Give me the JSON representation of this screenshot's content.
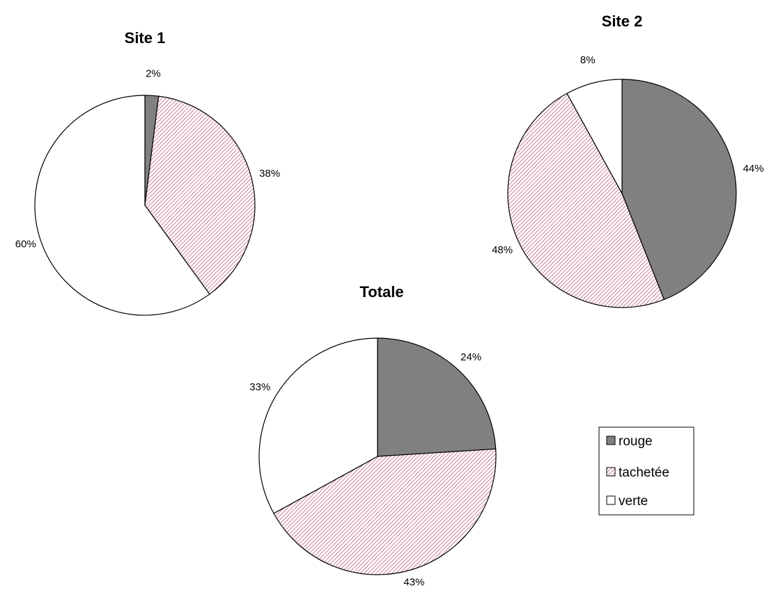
{
  "chart_data": [
    {
      "type": "pie",
      "title": "Site 1",
      "categories": [
        "rouge",
        "tachetée",
        "verte"
      ],
      "values": [
        2,
        38,
        60
      ],
      "labels": [
        "2%",
        "38%",
        "60%"
      ]
    },
    {
      "type": "pie",
      "title": "Site 2",
      "categories": [
        "rouge",
        "tachetée",
        "verte"
      ],
      "values": [
        44,
        48,
        8
      ],
      "labels": [
        "44%",
        "48%",
        "8%"
      ]
    },
    {
      "type": "pie",
      "title": "Totale",
      "categories": [
        "rouge",
        "tachetée",
        "verte"
      ],
      "values": [
        24,
        43,
        33
      ],
      "labels": [
        "24%",
        "43%",
        "33%"
      ]
    }
  ],
  "legend": {
    "entries": [
      {
        "label": "rouge",
        "fill": "solid",
        "color": "#808080"
      },
      {
        "label": "tachetée",
        "fill": "hatched",
        "color": "#e6b8c8"
      },
      {
        "label": "verte",
        "fill": "solid",
        "color": "#ffffff"
      }
    ]
  },
  "colors": {
    "rouge": "#808080",
    "tachetee_base": "#ffffff",
    "tachetee_hatch": "#c06080",
    "verte": "#ffffff",
    "outline": "#000000"
  }
}
